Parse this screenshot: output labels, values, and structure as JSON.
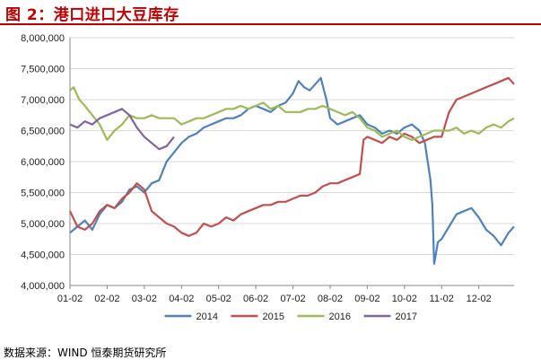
{
  "figure": {
    "title": "图 2：港口进口大豆库存",
    "source": "数据来源：WIND  恒泰期货研究所"
  },
  "chart_data": {
    "type": "line",
    "title": "图 2：港口进口大豆库存",
    "xlabel": "",
    "ylabel": "",
    "ylim": [
      4000000,
      8000000
    ],
    "yticks": [
      "4,000,000",
      "4,500,000",
      "5,000,000",
      "5,500,000",
      "6,000,000",
      "6,500,000",
      "7,000,000",
      "7,500,000",
      "8,000,000"
    ],
    "yticks_values": [
      4000000,
      4500000,
      5000000,
      5500000,
      6000000,
      6500000,
      7000000,
      7500000,
      8000000
    ],
    "xticks": [
      "01-02",
      "02-02",
      "03-02",
      "04-02",
      "05-02",
      "06-02",
      "07-02",
      "08-02",
      "09-02",
      "10-02",
      "11-02",
      "12-02"
    ],
    "x_domain": [
      1,
      12.95
    ],
    "grid": "horizontal",
    "legend_position": "bottom",
    "series": [
      {
        "name": "2014",
        "color": "#4f81bd",
        "x": [
          1.0,
          1.2,
          1.4,
          1.6,
          1.8,
          2.0,
          2.2,
          2.4,
          2.6,
          2.8,
          3.0,
          3.2,
          3.4,
          3.6,
          3.8,
          4.0,
          4.2,
          4.4,
          4.6,
          4.8,
          5.0,
          5.2,
          5.4,
          5.6,
          5.8,
          6.0,
          6.2,
          6.4,
          6.6,
          6.8,
          7.0,
          7.15,
          7.3,
          7.45,
          7.6,
          7.75,
          7.9,
          8.0,
          8.2,
          8.4,
          8.6,
          8.8,
          9.0,
          9.2,
          9.4,
          9.6,
          9.8,
          10.0,
          10.2,
          10.4,
          10.55,
          10.7,
          10.75,
          10.8,
          10.9,
          11.0,
          11.2,
          11.4,
          11.6,
          11.8,
          12.0,
          12.2,
          12.4,
          12.6,
          12.8,
          12.95
        ],
        "values": [
          4850000,
          4950000,
          5050000,
          4900000,
          5150000,
          5300000,
          5250000,
          5350000,
          5550000,
          5600000,
          5500000,
          5650000,
          5700000,
          6000000,
          6150000,
          6300000,
          6400000,
          6450000,
          6550000,
          6600000,
          6650000,
          6700000,
          6700000,
          6750000,
          6850000,
          6900000,
          6850000,
          6800000,
          6900000,
          6950000,
          7100000,
          7300000,
          7200000,
          7150000,
          7250000,
          7350000,
          7000000,
          6700000,
          6600000,
          6650000,
          6700000,
          6750000,
          6600000,
          6550000,
          6450000,
          6500000,
          6450000,
          6550000,
          6600000,
          6500000,
          6300000,
          5700000,
          5300000,
          4350000,
          4700000,
          4750000,
          4950000,
          5150000,
          5200000,
          5250000,
          5100000,
          4900000,
          4800000,
          4650000,
          4850000,
          4950000
        ]
      },
      {
        "name": "2015",
        "color": "#c0504d",
        "x": [
          1.0,
          1.2,
          1.4,
          1.6,
          1.8,
          2.0,
          2.2,
          2.4,
          2.6,
          2.8,
          3.0,
          3.2,
          3.4,
          3.6,
          3.8,
          4.0,
          4.2,
          4.4,
          4.6,
          4.8,
          5.0,
          5.2,
          5.4,
          5.6,
          5.8,
          6.0,
          6.2,
          6.4,
          6.6,
          6.8,
          7.0,
          7.2,
          7.4,
          7.6,
          7.8,
          8.0,
          8.2,
          8.4,
          8.6,
          8.8,
          8.9,
          9.0,
          9.2,
          9.4,
          9.6,
          9.8,
          10.0,
          10.2,
          10.4,
          10.6,
          10.8,
          11.0,
          11.2,
          11.4,
          11.6,
          11.8,
          12.0,
          12.2,
          12.4,
          12.6,
          12.8,
          12.95
        ],
        "values": [
          5200000,
          4950000,
          4900000,
          5000000,
          5200000,
          5300000,
          5250000,
          5400000,
          5500000,
          5650000,
          5550000,
          5200000,
          5100000,
          5000000,
          4950000,
          4850000,
          4800000,
          4850000,
          5000000,
          4950000,
          5000000,
          5100000,
          5050000,
          5150000,
          5200000,
          5250000,
          5300000,
          5300000,
          5350000,
          5350000,
          5400000,
          5450000,
          5450000,
          5500000,
          5600000,
          5650000,
          5650000,
          5700000,
          5750000,
          5800000,
          6350000,
          6400000,
          6350000,
          6300000,
          6400000,
          6350000,
          6450000,
          6400000,
          6300000,
          6350000,
          6400000,
          6400000,
          6800000,
          7000000,
          7050000,
          7100000,
          7150000,
          7200000,
          7250000,
          7300000,
          7350000,
          7250000
        ]
      },
      {
        "name": "2016",
        "color": "#9bbb59",
        "x": [
          1.0,
          1.1,
          1.25,
          1.4,
          1.6,
          1.8,
          2.0,
          2.2,
          2.4,
          2.6,
          2.8,
          3.0,
          3.2,
          3.4,
          3.6,
          3.8,
          4.0,
          4.2,
          4.4,
          4.6,
          4.8,
          5.0,
          5.2,
          5.4,
          5.6,
          5.8,
          6.0,
          6.2,
          6.4,
          6.6,
          6.8,
          7.0,
          7.2,
          7.4,
          7.6,
          7.8,
          8.0,
          8.2,
          8.4,
          8.6,
          8.8,
          9.0,
          9.2,
          9.4,
          9.6,
          9.8,
          10.0,
          10.2,
          10.4,
          10.6,
          10.8,
          11.0,
          11.2,
          11.4,
          11.6,
          11.8,
          12.0,
          12.2,
          12.4,
          12.6,
          12.8,
          12.95
        ],
        "values": [
          7150000,
          7200000,
          7000000,
          6900000,
          6750000,
          6600000,
          6350000,
          6500000,
          6600000,
          6750000,
          6700000,
          6700000,
          6750000,
          6700000,
          6700000,
          6700000,
          6600000,
          6650000,
          6700000,
          6700000,
          6750000,
          6800000,
          6850000,
          6850000,
          6900000,
          6850000,
          6900000,
          6950000,
          6850000,
          6900000,
          6800000,
          6800000,
          6800000,
          6850000,
          6850000,
          6900000,
          6850000,
          6800000,
          6750000,
          6800000,
          6700000,
          6550000,
          6500000,
          6400000,
          6450000,
          6500000,
          6400000,
          6350000,
          6400000,
          6450000,
          6500000,
          6500000,
          6500000,
          6550000,
          6450000,
          6500000,
          6450000,
          6550000,
          6600000,
          6550000,
          6650000,
          6700000
        ]
      },
      {
        "name": "2017",
        "color": "#8064a2",
        "x": [
          1.0,
          1.2,
          1.4,
          1.6,
          1.8,
          2.0,
          2.2,
          2.4,
          2.6,
          2.8,
          3.0,
          3.2,
          3.4,
          3.6,
          3.8
        ],
        "values": [
          6600000,
          6550000,
          6650000,
          6600000,
          6700000,
          6750000,
          6800000,
          6850000,
          6750000,
          6550000,
          6400000,
          6300000,
          6200000,
          6250000,
          6400000
        ]
      }
    ]
  }
}
